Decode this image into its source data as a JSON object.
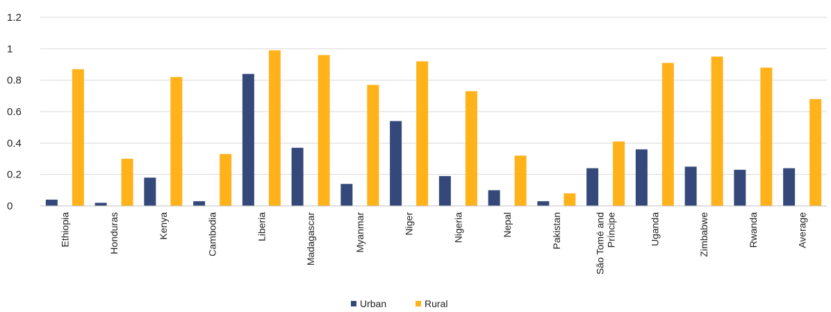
{
  "chart_data": {
    "type": "bar",
    "categories": [
      "Ethiopia",
      "Honduras",
      "Kenya",
      "Cambodia",
      "Liberia",
      "Madagascar",
      "Myanmar",
      "Niger",
      "Nigeria",
      "Nepal",
      "Pakistan",
      "São Tomé and Príncipe",
      "Uganda",
      "Zimbabwe",
      "Rwanda",
      "Average"
    ],
    "category_lines": [
      [
        "Ethiopia"
      ],
      [
        "Honduras"
      ],
      [
        "Kenya"
      ],
      [
        "Cambodia"
      ],
      [
        "Liberia"
      ],
      [
        "Madagascar"
      ],
      [
        "Myanmar"
      ],
      [
        "Niger"
      ],
      [
        "Nigeria"
      ],
      [
        "Nepal"
      ],
      [
        "Pakistan"
      ],
      [
        "São Tomé and",
        "Príncipe"
      ],
      [
        "Uganda"
      ],
      [
        "Zimbabwe"
      ],
      [
        "Rwanda"
      ],
      [
        "Average"
      ]
    ],
    "series": [
      {
        "name": "Urban",
        "color": "#34497a",
        "values": [
          0.04,
          0.02,
          0.18,
          0.03,
          0.84,
          0.37,
          0.14,
          0.54,
          0.19,
          0.1,
          0.03,
          0.24,
          0.36,
          0.25,
          0.23,
          0.24
        ]
      },
      {
        "name": "Rural",
        "color": "#ffb21a",
        "values": [
          0.87,
          0.3,
          0.82,
          0.33,
          0.99,
          0.96,
          0.77,
          0.92,
          0.73,
          0.32,
          0.08,
          0.41,
          0.91,
          0.95,
          0.88,
          0.68
        ]
      }
    ],
    "ylim": [
      0,
      1.2
    ],
    "yticks": [
      0,
      0.2,
      0.4,
      0.6,
      0.8,
      1,
      1.2
    ],
    "ytick_labels": [
      "0",
      "0.2",
      "0.4",
      "0.6",
      "0.8",
      "1",
      "1.2"
    ],
    "grid": true,
    "legend_position": "bottom"
  }
}
